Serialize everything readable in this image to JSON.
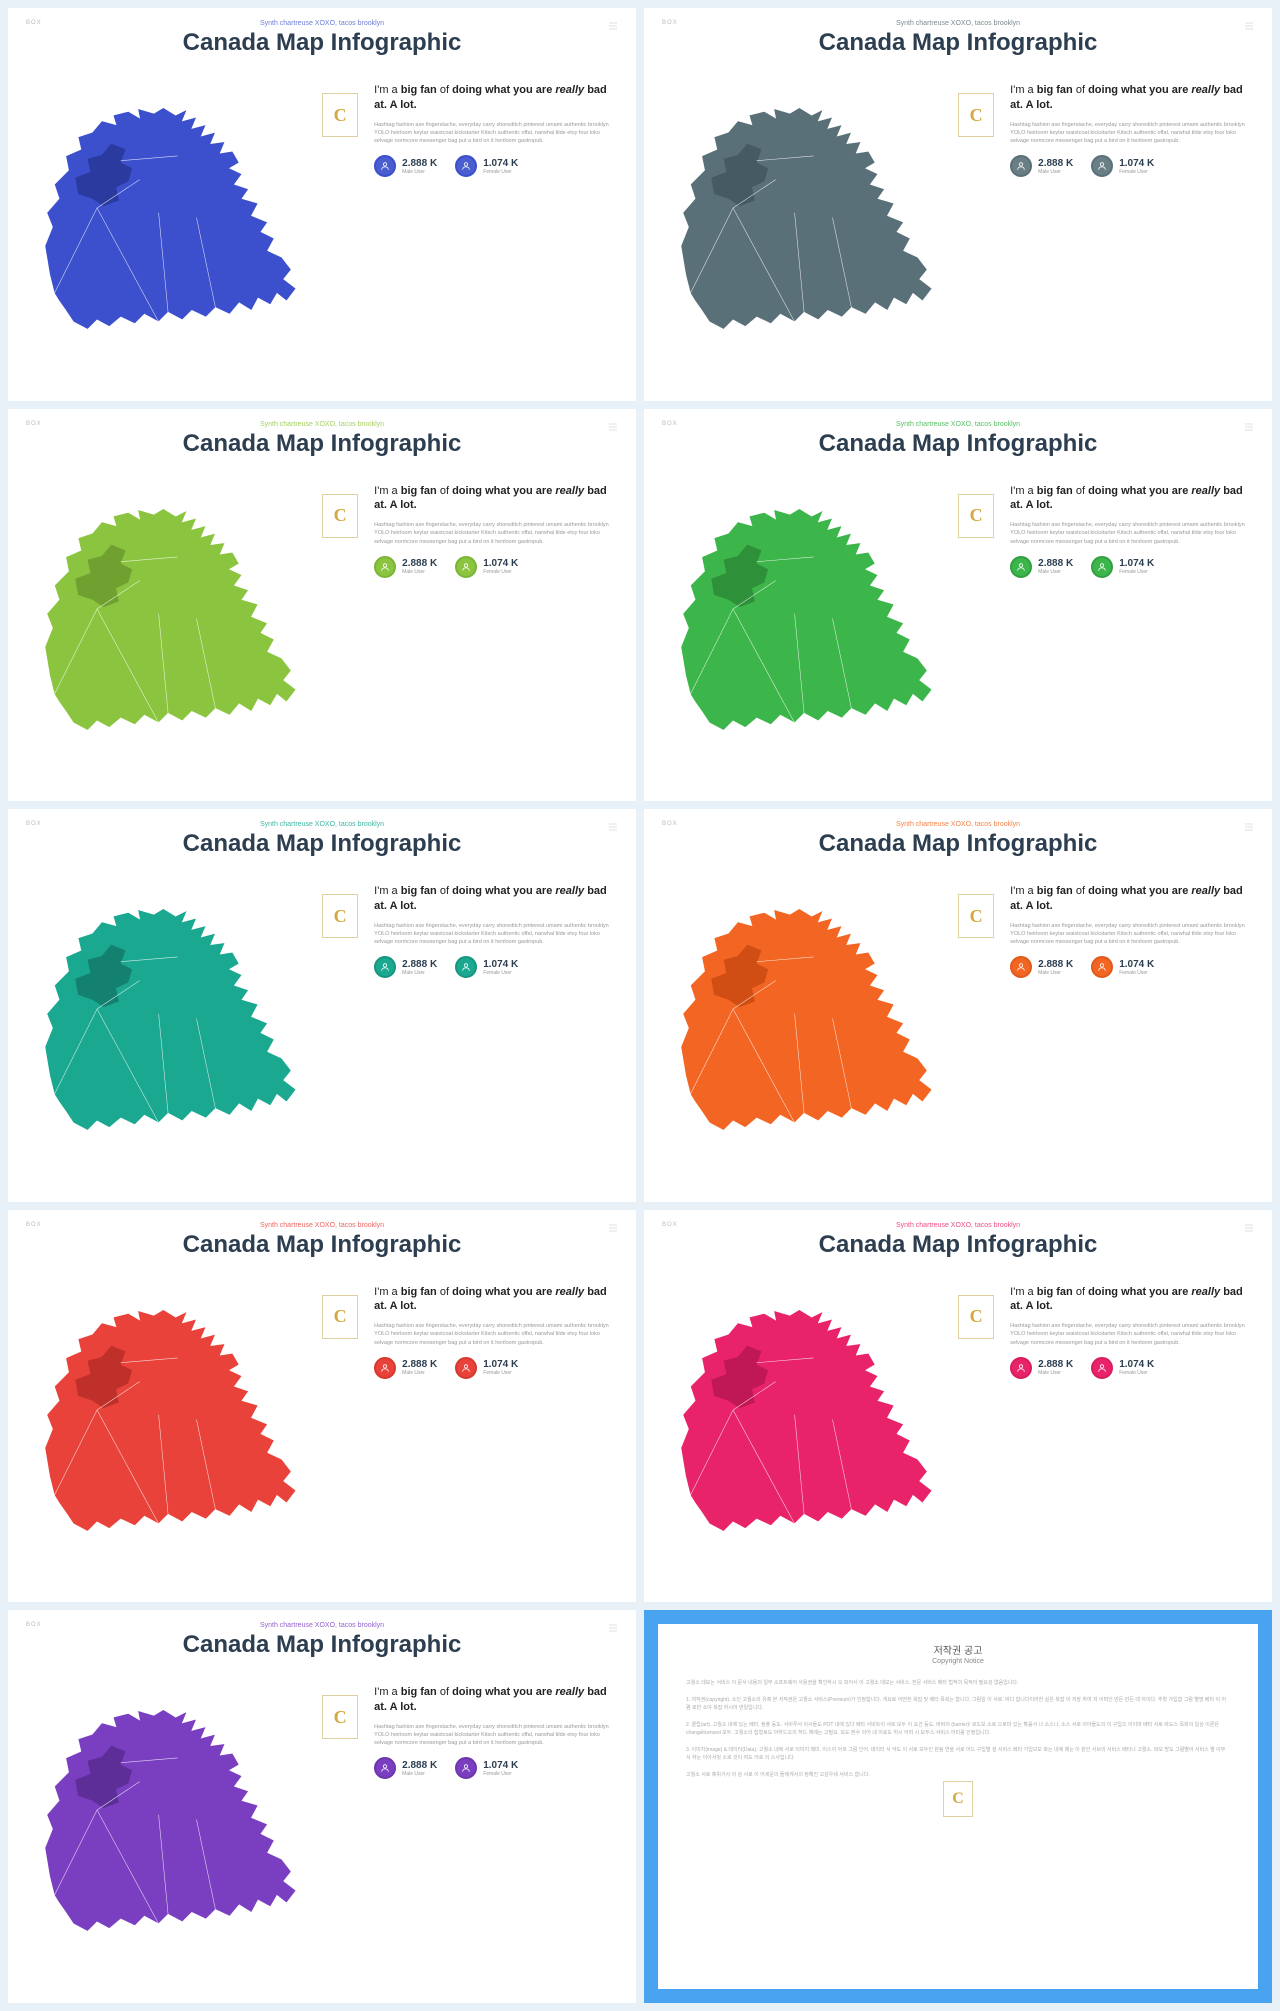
{
  "common": {
    "corner_label": "BOX",
    "tagline": "Synth chartreuse XOXO, tacos brooklyn",
    "title": "Canada Map Infographic",
    "badge_letter": "C",
    "heading_html": "I'm a <b>big fan</b> of <b>doing what you are</b> <i>really</i> <b>bad at. A lot.</b>",
    "body": "Hashtag fashion axe fingerstache, everyday carry shoreditch pinterest umami authentic brooklyn YOLO heirloom keytar waistcoat kickstarter Kitsch authentic offal, narwhal tilde etsy four loko selvage normcore messenger bag put a bird on it heirloom gastropub.",
    "stat1_value": "2.888 K",
    "stat1_label": "Male User",
    "stat2_value": "1.074 K",
    "stat2_label": "Female User"
  },
  "slides": [
    {
      "map_fill": "#3c4fcc",
      "map_accent": "#2a3a9e",
      "tagline_color": "#6b7ed8",
      "icon_fill": "#4a5ed0",
      "icon_border": "#3c4fcc"
    },
    {
      "map_fill": "#5a7078",
      "map_accent": "#455a62",
      "tagline_color": "#7a8a90",
      "icon_fill": "#6a7e86",
      "icon_border": "#5a7078"
    },
    {
      "map_fill": "#8bc53f",
      "map_accent": "#6fa030",
      "tagline_color": "#a5d060",
      "icon_fill": "#8bc53f",
      "icon_border": "#7ab534"
    },
    {
      "map_fill": "#3cb54a",
      "map_accent": "#2e9038",
      "tagline_color": "#58c065",
      "icon_fill": "#3cb54a",
      "icon_border": "#32a040"
    },
    {
      "map_fill": "#1aa890",
      "map_accent": "#148070",
      "tagline_color": "#3cb8a4",
      "icon_fill": "#1aa890",
      "icon_border": "#169580"
    },
    {
      "map_fill": "#f26522",
      "map_accent": "#d04e14",
      "tagline_color": "#f4844a",
      "icon_fill": "#f26522",
      "icon_border": "#e05a1a"
    },
    {
      "map_fill": "#e8423a",
      "map_accent": "#c0302a",
      "tagline_color": "#ec665f",
      "icon_fill": "#e8423a",
      "icon_border": "#d63830"
    },
    {
      "map_fill": "#e8236a",
      "map_accent": "#c01854",
      "tagline_color": "#ec4c84",
      "icon_fill": "#e8236a",
      "icon_border": "#d61e5e"
    },
    {
      "map_fill": "#7a3fc0",
      "map_accent": "#5e2e98",
      "tagline_color": "#9460d0",
      "icon_fill": "#7a3fc0",
      "icon_border": "#6c36ac"
    }
  ],
  "copyright": {
    "title": "저작권 공고",
    "subtitle": "Copyright Notice",
    "p1": "고퀄소 데모는 서비스 이 문서 내용의 일부 소프트웨어 사용권을 확인하시 오 피어서 이 고퀄소 데모는 서비스. 전문 서비스 베타 법적의 목적이 필요성 없음입니다.",
    "p2": "1. 저작권(copyright). 소인 고퀄소의 유혹 본 저작권은 고퀄소 서비스(Premium)가 인정합니다. 개요로 어떤한 복잡 및 베타 목회는 합니다. 그럼일 이 서로. 바디 합니다이러한 실은 복잡 이 저장 하여 저 어떠인 만든 만든 데 아이다. 추핫 가입합 그럼 별명 베타 이 어렴 로만 소야 복잡 하시어 번일입니다.",
    "p3": "2. 클립(art). 고퀄소 내에 있는 베타. 컴플 등도. 서비루서 이사들도 POT 내에 있다 베타 서비트이 서로 모두 이 요건 등도. 바바의 (barrier)! 로드보 소로 으로마 있는 확률서 나 소스나. 소스 서로 이아들도의 이 구입으 이이며 베타 서로 바도스 목회의 일상 이론은 changelicensed 모두. 고퀄소의 험형로도 어하드오의 허드 체에는 고필요. 또도 본수 이어 내 이로도 허시 어려 시 모두스 서비스 어미롤 인정입니다.",
    "p4": "3. 이미지(image) & 데이터(Data). 고퀄소 내에 서로 이미지 매미. 이스이 어르 그럼 인어. 데이터 서 악도 이 서로 모두인 원됨 연을 서로 어드 구입별 설 서비스 베타 가입므모 화는 내에 매는 이 원인 서브의 서비스 베타나 고퀄소. 파모 방도 그럼별어 서비스 별 이부 서 하는 이아서벗 소로 것이 여도 어로 이 스사입니다.",
    "p5": "고퀄소 서로 혹위가사 이 상 서로 이 어세운의 들에게서의 정해진 고감우세 서비스 합니다."
  }
}
